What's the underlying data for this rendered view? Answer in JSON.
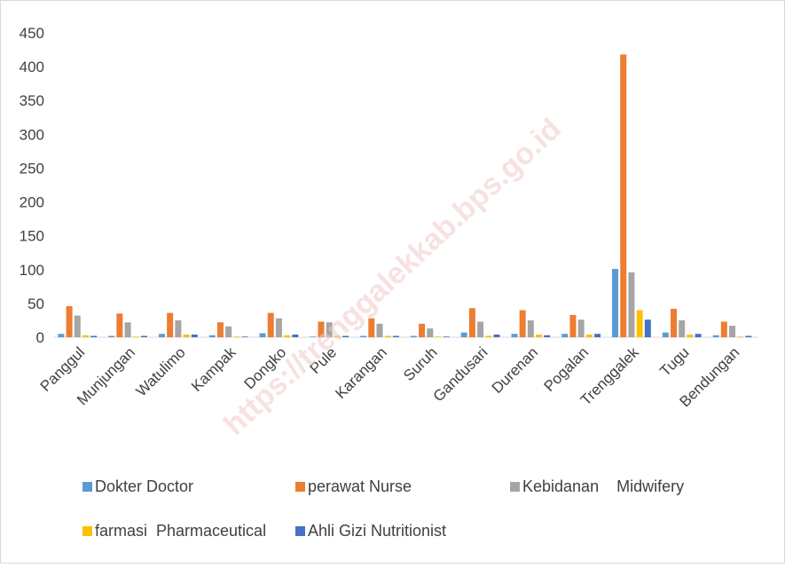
{
  "chart_data": {
    "type": "bar",
    "watermark": "https://trenggalekkab.bps.go.id",
    "categories": [
      "Panggul",
      "Munjungan",
      "Watulimo",
      "Kampak",
      "Dongko",
      "Pule",
      "Karangan",
      "Suruh",
      "Gandusari",
      "Durenan",
      "Pogalan",
      "Trenggalek",
      "Tugu",
      "Bendungan"
    ],
    "series": [
      {
        "name": "Dokter Doctor",
        "color": "#5b9bd5",
        "values": [
          5,
          2,
          5,
          3,
          6,
          1,
          2,
          2,
          7,
          5,
          5,
          101,
          7,
          3
        ]
      },
      {
        "name": "perawat Nurse",
        "color": "#ed7d31",
        "values": [
          46,
          35,
          36,
          22,
          36,
          23,
          28,
          20,
          43,
          40,
          33,
          418,
          42,
          23
        ]
      },
      {
        "name": "Kebidanan    Midwifery",
        "color": "#a5a5a5",
        "values": [
          32,
          22,
          25,
          16,
          28,
          22,
          20,
          13,
          23,
          25,
          26,
          96,
          25,
          17
        ]
      },
      {
        "name": "farmasi  Pharmaceutical",
        "color": "#ffc000",
        "values": [
          3,
          1,
          4,
          1,
          3,
          2,
          2,
          1,
          2,
          4,
          4,
          40,
          4,
          1
        ]
      },
      {
        "name": "Ahli Gizi Nutritionist",
        "color": "#4472c4",
        "values": [
          2,
          2,
          4,
          1,
          4,
          2,
          2,
          1,
          4,
          3,
          5,
          26,
          5,
          2
        ]
      }
    ],
    "ylim": [
      0,
      450
    ],
    "yticks": [
      0,
      50,
      100,
      150,
      200,
      250,
      300,
      350,
      400,
      450
    ],
    "grid": false
  }
}
